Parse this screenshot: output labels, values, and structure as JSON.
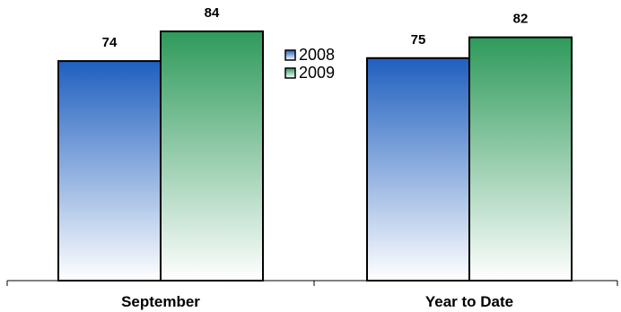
{
  "chart_data": {
    "type": "bar",
    "categories": [
      "September",
      "Year to Date"
    ],
    "series": [
      {
        "name": "2008",
        "values": [
          74,
          75
        ],
        "color_top": "#1f5fbf",
        "color_bottom": "#ffffff"
      },
      {
        "name": "2009",
        "values": [
          84,
          82
        ],
        "color_top": "#2e9a5a",
        "color_bottom": "#ffffff"
      }
    ],
    "data_labels": [
      [
        "74",
        "75"
      ],
      [
        "84",
        "82"
      ]
    ],
    "ylim": [
      0,
      84
    ],
    "grid": false,
    "legend_position": "top-center",
    "title": "",
    "xlabel": "",
    "ylabel": ""
  }
}
